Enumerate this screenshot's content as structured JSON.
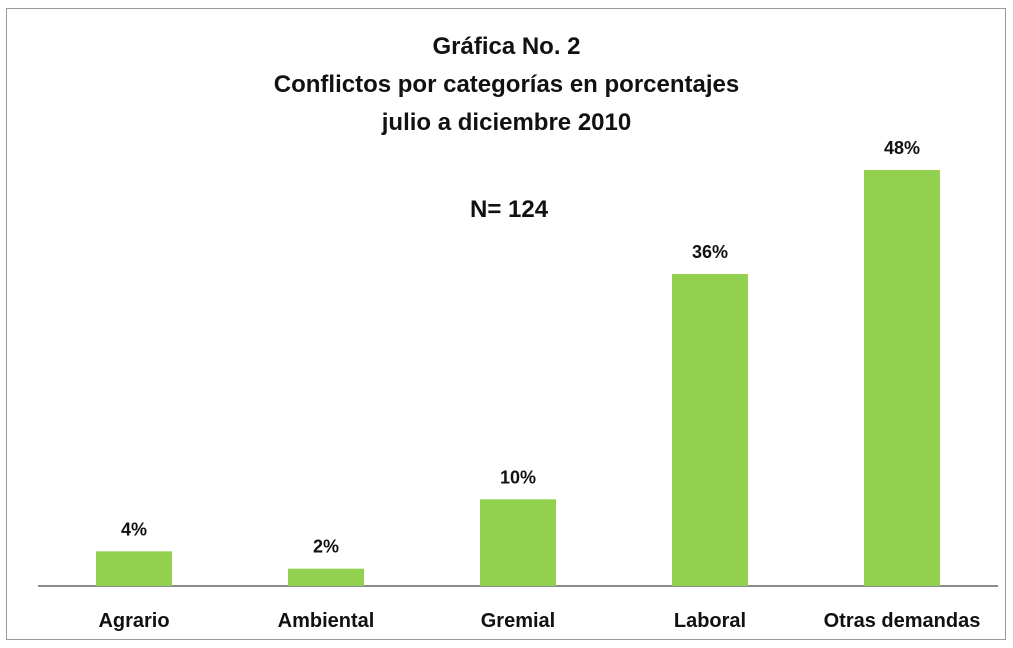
{
  "chart_data": {
    "type": "bar",
    "title": "Gráfica No. 2",
    "subtitle": [
      "Conflictos por categorías en porcentajes",
      "julio a diciembre 2010"
    ],
    "annotation": "N= 124",
    "categories": [
      "Agrario",
      "Ambiental",
      "Gremial",
      "Laboral",
      "Otras demandas"
    ],
    "values": [
      4,
      2,
      10,
      36,
      48
    ],
    "value_labels": [
      "4%",
      "2%",
      "10%",
      "36%",
      "48%"
    ],
    "ylim": [
      0,
      48
    ],
    "grid": false,
    "legend": "none",
    "bar_color": "#92d050"
  }
}
